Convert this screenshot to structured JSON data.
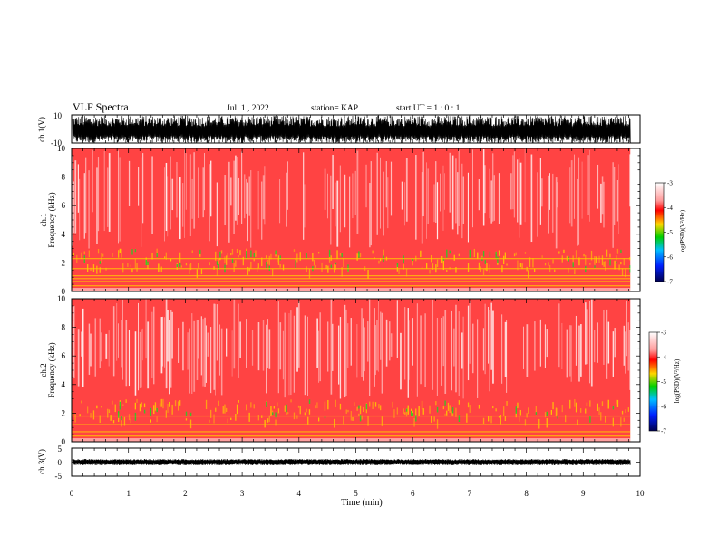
{
  "header": {
    "title": "VLF Spectra",
    "date": "Jul. 1 , 2022",
    "station": "station= KAP",
    "start": "start UT = 1 : 0 : 1"
  },
  "chart_data": [
    {
      "type": "line",
      "panel": "ch1-waveform",
      "ylabel": "ch.1(V)",
      "ylim": [
        -10,
        10
      ],
      "yticks": [
        "10",
        "-10"
      ],
      "xlim": [
        0,
        10
      ],
      "data_end_x": 9.83,
      "series": [
        {
          "values_note": "dense noise waveform, mostly between -10 and +9 V"
        }
      ],
      "grid": false
    },
    {
      "type": "heatmap",
      "panel": "ch1-spectrogram",
      "ylabel": "ch.1\nFrequency (kHz)",
      "ylim": [
        0,
        10
      ],
      "yticks": [
        "0",
        "2",
        "4",
        "6",
        "8",
        "10"
      ],
      "xlim": [
        0,
        10
      ],
      "data_end_x": 9.83,
      "colorbar": {
        "label": "log(PSD)(V²/Hz)",
        "range": [
          -7,
          -3
        ],
        "ticks": [
          "-3",
          "-4",
          "-5",
          "-6",
          "-7"
        ]
      },
      "features": {
        "background_level": -4,
        "strong_band_kHz": [
          0.5,
          3
        ],
        "horizontal_lines_kHz": [
          0.4,
          0.7,
          0.9,
          1.1,
          1.6,
          2.3
        ]
      }
    },
    {
      "type": "heatmap",
      "panel": "ch2-spectrogram",
      "ylabel": "ch.2\nFrequency (kHz)",
      "ylim": [
        0,
        10
      ],
      "yticks": [
        "0",
        "2",
        "4",
        "6",
        "8",
        "10"
      ],
      "xlim": [
        0,
        10
      ],
      "data_end_x": 9.83,
      "colorbar": {
        "label": "log(PSD)(V²/Hz)",
        "range": [
          -7,
          -3
        ],
        "ticks": [
          "-3",
          "-4",
          "-5",
          "-6",
          "-7"
        ]
      },
      "features": {
        "background_level": -4,
        "strong_band_kHz": [
          0.5,
          3
        ],
        "horizontal_lines_kHz": [
          0.4,
          0.7,
          1.2,
          1.8
        ]
      }
    },
    {
      "type": "line",
      "panel": "ch3-waveform",
      "ylabel": "ch.3(V)",
      "ylim": [
        -5,
        5
      ],
      "yticks": [
        "5",
        "0",
        "-5"
      ],
      "xlim": [
        0,
        10
      ],
      "data_end_x": 9.83,
      "series": [
        {
          "values_note": "narrow band centered near 0 V"
        }
      ],
      "grid": false
    }
  ],
  "xaxis": {
    "label": "Time (min)",
    "ticks": [
      "0",
      "1",
      "2",
      "3",
      "4",
      "5",
      "6",
      "7",
      "8",
      "9",
      "10"
    ]
  },
  "colors": {
    "heat_background": "#ff1a1a",
    "heat_low": "#ffffff",
    "heat_mid": "#ffcc00",
    "heat_high": "#22d022",
    "waveform": "#000000"
  }
}
